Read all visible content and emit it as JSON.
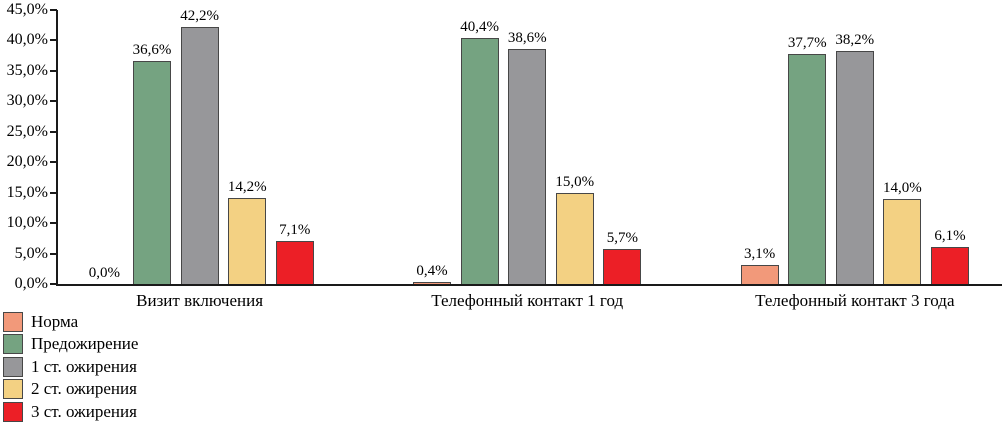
{
  "chart_data": {
    "type": "bar",
    "title": "",
    "xlabel": "",
    "ylabel": "",
    "grid": false,
    "legend_position": "bottom-left",
    "categories": [
      "Визит включения",
      "Телефонный контакт 1 год",
      "Телефонный контакт 3 года"
    ],
    "series": [
      {
        "name": "Норма",
        "color": "#F2997A",
        "values": [
          0.0,
          0.4,
          3.1
        ],
        "labels": [
          "0,0%",
          "0,4%",
          "3,1%"
        ]
      },
      {
        "name": "Предожирение",
        "color": "#75A381",
        "values": [
          36.6,
          40.4,
          37.7
        ],
        "labels": [
          "36,6%",
          "40,4%",
          "37,7%"
        ]
      },
      {
        "name": "1 ст. ожирения",
        "color": "#97979A",
        "values": [
          42.2,
          38.6,
          38.2
        ],
        "labels": [
          "42,2%",
          "38,6%",
          "38,2%"
        ]
      },
      {
        "name": "2 ст. ожирения",
        "color": "#F3D183",
        "values": [
          14.2,
          15.0,
          14.0
        ],
        "labels": [
          "14,2%",
          "15,0%",
          "14,0%"
        ]
      },
      {
        "name": "3 ст. ожирения",
        "color": "#EC1F26",
        "values": [
          7.1,
          5.7,
          6.1
        ],
        "labels": [
          "7,1%",
          "5,7%",
          "6,1%"
        ]
      }
    ],
    "y_axis": {
      "min": 0,
      "max": 45,
      "step": 5,
      "tick_labels": [
        "0,0%",
        "5,0%",
        "10,0%",
        "15,0%",
        "20,0%",
        "25,0%",
        "30,0%",
        "35,0%",
        "40,0%",
        "45,0%"
      ]
    }
  }
}
